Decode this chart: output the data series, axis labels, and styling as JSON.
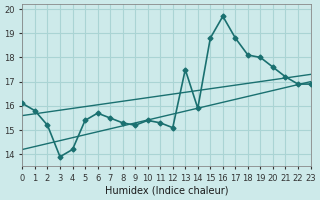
{
  "xlabel": "Humidex (Indice chaleur)",
  "ylabel": "",
  "xlim": [
    0,
    23
  ],
  "ylim": [
    13.5,
    20.2
  ],
  "bg_color": "#cdeaea",
  "grid_color": "#aad4d4",
  "line_color": "#1a7070",
  "x_main": [
    0,
    1,
    2,
    3,
    4,
    5,
    6,
    7,
    8,
    9,
    10,
    11,
    12,
    13,
    14,
    15,
    16,
    17,
    18,
    19,
    20,
    21,
    22,
    23
  ],
  "y_main": [
    16.1,
    15.8,
    15.2,
    13.9,
    14.2,
    15.4,
    15.7,
    15.5,
    15.3,
    15.2,
    15.4,
    15.3,
    15.1,
    17.5,
    15.9,
    18.8,
    19.7,
    18.8,
    18.1,
    18.0,
    17.6,
    17.2,
    16.9,
    16.9
  ],
  "line1_x": [
    0,
    23
  ],
  "line1_y": [
    14.2,
    17.0
  ],
  "line2_x": [
    0,
    23
  ],
  "line2_y": [
    15.6,
    17.3
  ],
  "yticks": [
    14,
    15,
    16,
    17,
    18,
    19,
    20
  ],
  "xtick_labels": [
    "0",
    "1",
    "2",
    "3",
    "4",
    "5",
    "6",
    "7",
    "8",
    "9",
    "10",
    "11",
    "12",
    "13",
    "14",
    "15",
    "16",
    "17",
    "18",
    "19",
    "20",
    "21",
    "22",
    "23"
  ],
  "xticks": [
    0,
    1,
    2,
    3,
    4,
    5,
    6,
    7,
    8,
    9,
    10,
    11,
    12,
    13,
    14,
    15,
    16,
    17,
    18,
    19,
    20,
    21,
    22,
    23
  ]
}
